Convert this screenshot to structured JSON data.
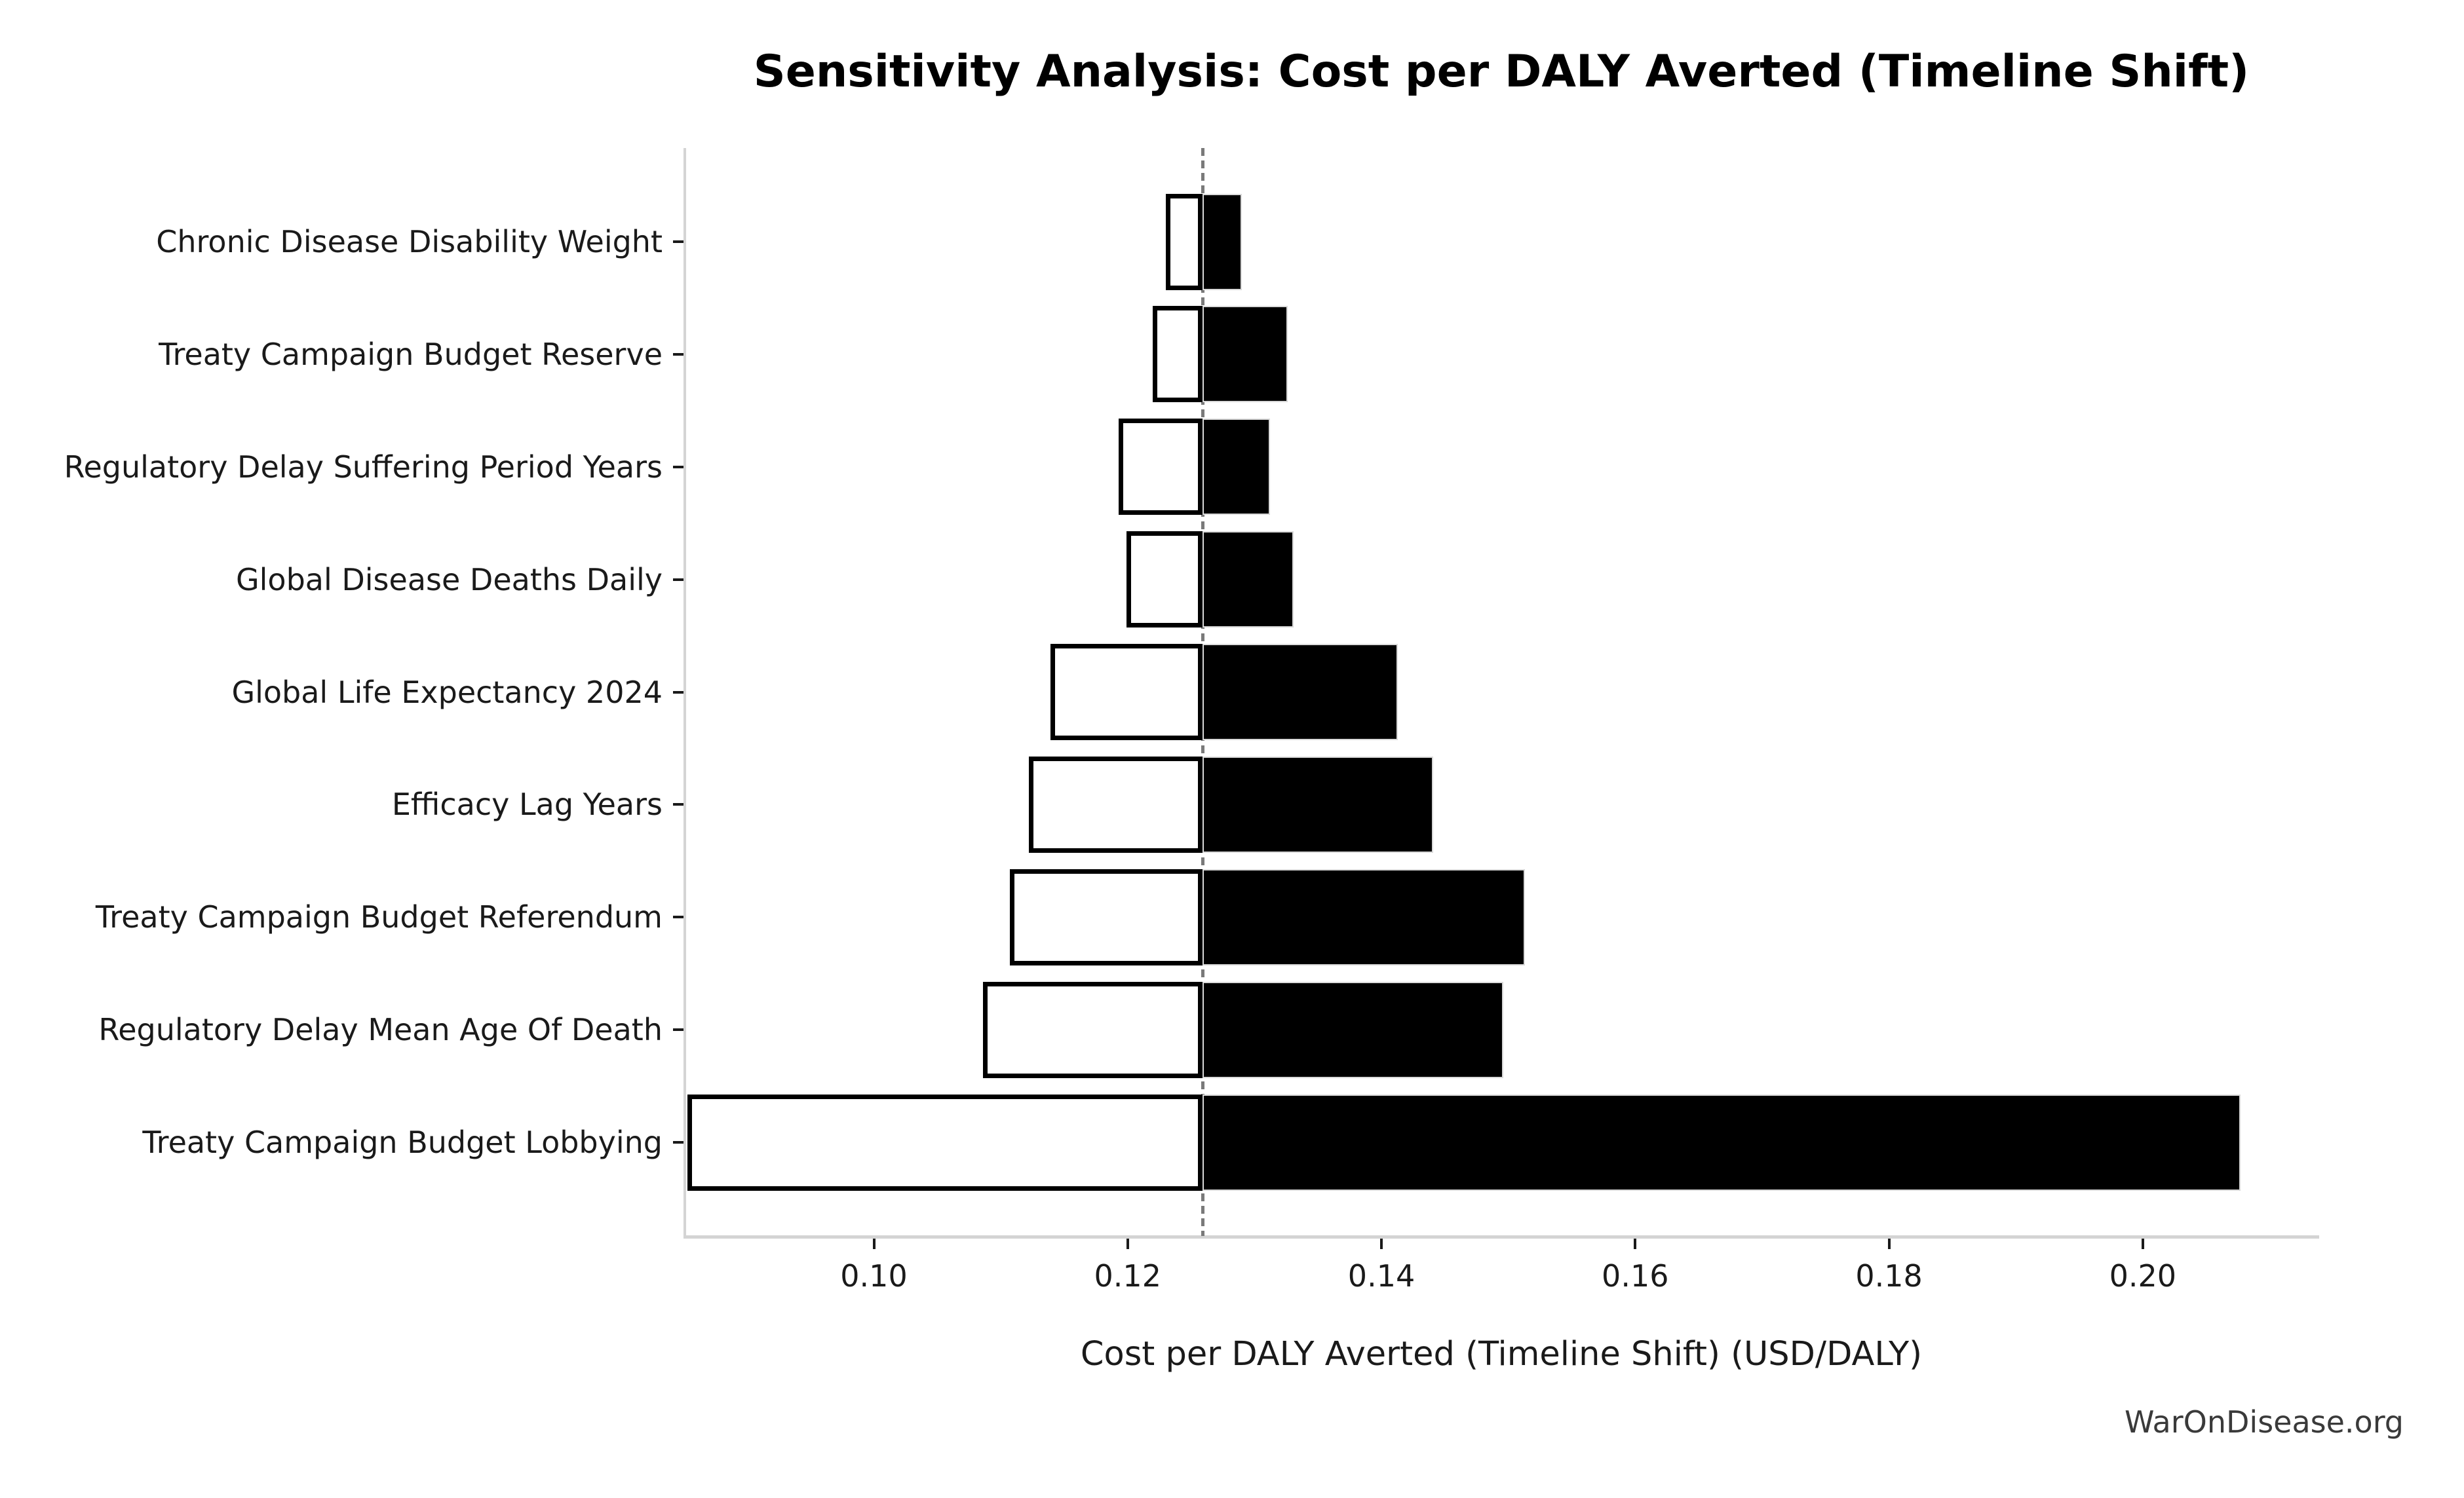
{
  "figure": {
    "title": "Sensitivity Analysis: Cost per DALY Averted (Timeline Shift)",
    "x_axis_label": "Cost per DALY Averted (Timeline Shift) (USD/DALY)",
    "watermark": "WarOnDisease.org"
  },
  "chart_data": {
    "type": "bar",
    "subtype": "tornado-horizontal",
    "title": "Sensitivity Analysis: Cost per DALY Averted (Timeline Shift)",
    "xlabel": "Cost per DALY Averted (Timeline Shift) (USD/DALY)",
    "ylabel": "",
    "baseline": 0.1259,
    "xlim": [
      0.0851,
      0.2138
    ],
    "x_ticks": [
      0.1,
      0.12,
      0.14,
      0.16,
      0.18,
      0.2
    ],
    "x_tick_labels": [
      "0.10",
      "0.12",
      "0.14",
      "0.16",
      "0.18",
      "0.20"
    ],
    "grid": false,
    "legend": "none",
    "categories": [
      "Chronic Disease Disability Weight",
      "Treaty Campaign Budget Reserve",
      "Regulatory Delay Suffering Period Years",
      "Global Disease Deaths Daily",
      "Global Life Expectancy 2024",
      "Efficacy Lag Years",
      "Treaty Campaign Budget Referendum",
      "Regulatory Delay Mean Age Of Death",
      "Treaty Campaign Budget Lobbying"
    ],
    "series": [
      {
        "name": "low",
        "values": [
          0.123,
          0.122,
          0.1193,
          0.1199,
          0.1139,
          0.1122,
          0.1107,
          0.1086,
          0.0853
        ]
      },
      {
        "name": "high",
        "values": [
          0.129,
          0.1326,
          0.1312,
          0.1331,
          0.1413,
          0.1441,
          0.1513,
          0.1496,
          0.2077
        ]
      }
    ],
    "colors": {
      "low_fill": "#ffffff",
      "low_edge": "#000000",
      "high_fill": "#000000",
      "high_edge": "#d9d9d9",
      "baseline_line": "#7a7a7a",
      "spine": "#d4d4d4",
      "tick": "#1a1a1a"
    }
  }
}
